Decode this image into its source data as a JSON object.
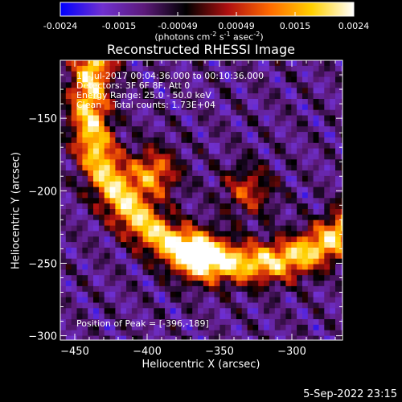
{
  "colorbar": {
    "ticks": [
      "-0.0024",
      "-0.0015",
      "-0.00049",
      "0.00049",
      "0.0015",
      "0.0024"
    ],
    "unit_parts": [
      "(photons cm",
      "-2",
      " s",
      "-1",
      " asec",
      "-2",
      ")"
    ],
    "colors": [
      "#0000ff",
      "#7030d0",
      "#5c1a7a",
      "#000000",
      "#b01010",
      "#ff6a00",
      "#ffd000",
      "#ffffff"
    ]
  },
  "chart_data": {
    "type": "heatmap",
    "title": "Reconstructed RHESSI Image",
    "xlabel": "Heliocentric X (arcsec)",
    "ylabel": "Heliocentric Y (arcsec)",
    "xlim": [
      -460,
      -265
    ],
    "ylim": [
      -303,
      -110
    ],
    "xticks": [
      -450,
      -400,
      -350,
      -300
    ],
    "yticks": [
      -150,
      -200,
      -250,
      -300
    ],
    "xtick_labels": [
      "−450",
      "−400",
      "−350",
      "−300"
    ],
    "ytick_labels": [
      "−150",
      "−200",
      "−250",
      "−300"
    ],
    "peak": [
      -396,
      -189
    ],
    "sources": [
      {
        "x": -396,
        "y": -188,
        "strength": 0.0024
      },
      {
        "x": -365,
        "y": -245,
        "strength": 0.0021
      },
      {
        "x": -330,
        "y": -200,
        "strength": 0.0017
      }
    ]
  },
  "info": {
    "line1": "10-Jul-2017 00:04:36.000 to 00:10:36.000",
    "line2": "Detectors: 3F 6F 8F, Att 0",
    "line3": "Energy Range: 25.0 - 50.0 keV",
    "line4": "Clean    Total counts: 1.73E+04",
    "peak_label": "Position of Peak = [-396,-189]"
  },
  "footer": {
    "date": "5-Sep-2022 23:15"
  }
}
